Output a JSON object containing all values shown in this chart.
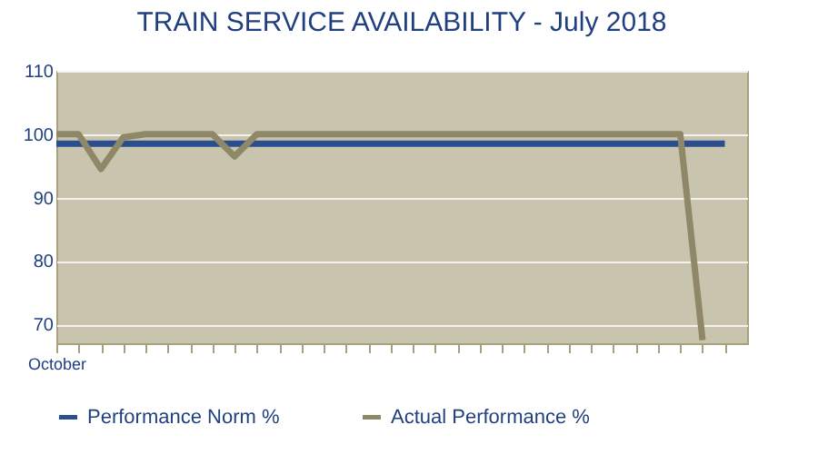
{
  "chart_data": {
    "type": "line",
    "title": "TRAIN SERVICE AVAILABILITY - July 2018",
    "categories": [
      "October",
      null,
      null,
      null,
      null,
      null,
      null,
      null,
      null,
      null,
      null,
      null,
      null,
      null,
      null,
      null,
      null,
      null,
      null,
      null,
      null,
      null,
      null,
      null,
      null,
      null,
      null,
      null,
      null,
      null,
      null
    ],
    "series": [
      {
        "name": "Performance Norm %",
        "color": "#2b4e8e",
        "values": [
          98.5,
          98.5,
          98.5,
          98.5,
          98.5,
          98.5,
          98.5,
          98.5,
          98.5,
          98.5,
          98.5,
          98.5,
          98.5,
          98.5,
          98.5,
          98.5,
          98.5,
          98.5,
          98.5,
          98.5,
          98.5,
          98.5,
          98.5,
          98.5,
          98.5,
          98.5,
          98.5,
          98.5,
          98.5,
          98.5,
          98.5
        ]
      },
      {
        "name": "Actual Performance %",
        "color": "#8f8868",
        "values": [
          100,
          100,
          94.5,
          99.5,
          100,
          100,
          100,
          100,
          96.5,
          100,
          100,
          100,
          100,
          100,
          100,
          100,
          100,
          100,
          100,
          100,
          100,
          100,
          100,
          100,
          100,
          100,
          100,
          100,
          100,
          67.5,
          null
        ]
      }
    ],
    "ylim": [
      67,
      110
    ],
    "yticks": [
      70,
      80,
      90,
      100,
      110
    ],
    "grid": "y",
    "legend": "bottom",
    "marker": "none",
    "line_style": "solid"
  }
}
